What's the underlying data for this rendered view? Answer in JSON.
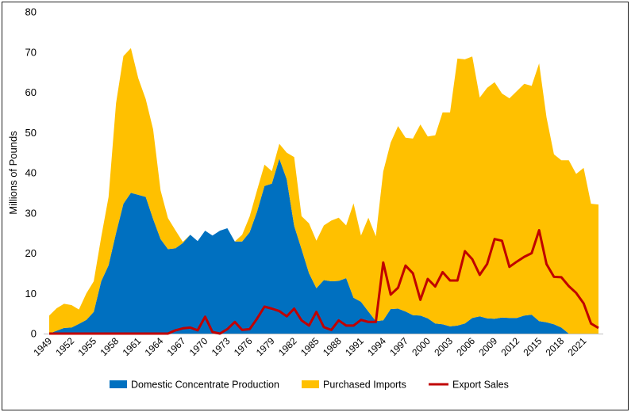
{
  "chart_data": {
    "type": "area",
    "stacked": true,
    "title": "",
    "xlabel": "",
    "ylabel": "Millions of Pounds",
    "ylim": [
      0,
      80
    ],
    "yticks": [
      0,
      10,
      20,
      30,
      40,
      50,
      60,
      70,
      80
    ],
    "xlim": [
      1949,
      2023
    ],
    "xtick_labels": [
      "1949",
      "1952",
      "1955",
      "1958",
      "1961",
      "1964",
      "1967",
      "1970",
      "1973",
      "1976",
      "1979",
      "1982",
      "1985",
      "1988",
      "1991",
      "1994",
      "1997",
      "2000",
      "2003",
      "2006",
      "2009",
      "2012",
      "2015",
      "2018",
      "2021"
    ],
    "grid": false,
    "legend_position": "bottom",
    "x": [
      1949,
      1950,
      1951,
      1952,
      1953,
      1954,
      1955,
      1956,
      1957,
      1958,
      1959,
      1960,
      1961,
      1962,
      1963,
      1964,
      1965,
      1966,
      1967,
      1968,
      1969,
      1970,
      1971,
      1972,
      1973,
      1974,
      1975,
      1976,
      1977,
      1978,
      1979,
      1980,
      1981,
      1982,
      1983,
      1984,
      1985,
      1986,
      1987,
      1988,
      1989,
      1990,
      1991,
      1992,
      1993,
      1994,
      1995,
      1996,
      1997,
      1998,
      1999,
      2000,
      2001,
      2002,
      2003,
      2004,
      2005,
      2006,
      2007,
      2008,
      2009,
      2010,
      2011,
      2012,
      2013,
      2014,
      2015,
      2016,
      2017,
      2018,
      2019,
      2020,
      2021,
      2022,
      2023
    ],
    "series": [
      {
        "name": "Domestic Concentrate Production",
        "kind": "area",
        "color": "#0070C0",
        "values": [
          0,
          0.7,
          1.4,
          1.5,
          2.4,
          3.4,
          5.4,
          13,
          17,
          25,
          32.3,
          35,
          34.5,
          34,
          28.5,
          23.5,
          21,
          21.2,
          22.5,
          24.6,
          23,
          25.6,
          24.4,
          25.6,
          26.2,
          22.9,
          22.9,
          25.2,
          30.3,
          36.7,
          37.3,
          43.5,
          38.4,
          26.8,
          21,
          15,
          11.3,
          13.3,
          13,
          13.1,
          13.8,
          8.9,
          7.9,
          5.5,
          3.1,
          3.3,
          6.1,
          6.2,
          5.5,
          4.6,
          4.5,
          3.8,
          2.5,
          2.3,
          1.8,
          2,
          2.5,
          3.9,
          4.3,
          3.8,
          3.7,
          4,
          3.9,
          3.9,
          4.5,
          4.7,
          3.1,
          2.8,
          2.3,
          1.5,
          0,
          0,
          0,
          0,
          0
        ]
      },
      {
        "name": "Purchased Imports",
        "kind": "area",
        "color": "#FFC000",
        "values": [
          4.5,
          5.6,
          6.0,
          5.6,
          3.6,
          6.6,
          7.6,
          11,
          17,
          32.3,
          36.7,
          36,
          29,
          24.3,
          22.3,
          12.1,
          7.7,
          4.5,
          0.3,
          0,
          0,
          0,
          0,
          0,
          0,
          0,
          1.7,
          3.9,
          5.3,
          5.3,
          3.1,
          3.7,
          6.6,
          17.1,
          8.2,
          12.4,
          11.8,
          13.6,
          15.1,
          15.7,
          13.1,
          23.5,
          16.5,
          23.3,
          21.1,
          37,
          41.4,
          45.4,
          43.2,
          43.9,
          47.5,
          45.2,
          46.8,
          52.7,
          53.2,
          66.4,
          65.7,
          65,
          54.4,
          57.3,
          58.8,
          55.7,
          54.6,
          56.4,
          57.6,
          56.9,
          64.1,
          51,
          42.3,
          41.6,
          43.1,
          39.7,
          41.2,
          32.3,
          32.1
        ]
      },
      {
        "name": "Export Sales",
        "kind": "line",
        "color": "#C00000",
        "values": [
          0,
          0,
          0,
          0,
          0,
          0,
          0,
          0,
          0,
          0,
          0,
          0,
          0,
          0,
          0,
          0,
          0,
          0.8,
          1.3,
          1.5,
          0.8,
          4.2,
          0.4,
          0,
          1.1,
          2.9,
          0.9,
          1.1,
          3.7,
          6.7,
          6.2,
          5.6,
          4.3,
          6.2,
          3.3,
          2,
          5.4,
          1.6,
          0.9,
          3.3,
          2,
          2,
          3.4,
          2.9,
          2.9,
          17.7,
          9.7,
          11.4,
          16.9,
          15,
          8.4,
          13.6,
          11.7,
          15.3,
          13.2,
          13.2,
          20.5,
          18.5,
          14.6,
          17.3,
          23.5,
          23.1,
          16.6,
          17.9,
          19.1,
          20,
          25.7,
          17.3,
          14.1,
          14,
          11.8,
          10.1,
          7.5,
          2.5,
          1.4
        ]
      }
    ]
  }
}
